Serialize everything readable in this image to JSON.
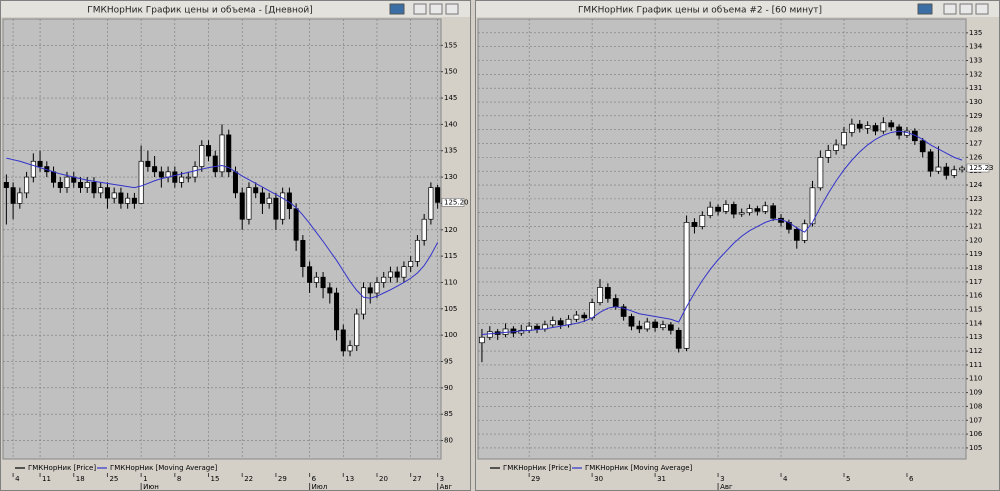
{
  "chart_data": [
    {
      "type": "candlestick",
      "title": "ГМКНорНик График цены и объема - [Дневной]",
      "xlim": [
        -0.5,
        64.5
      ],
      "ylim": [
        76.5,
        160
      ],
      "yticks": [
        155,
        150,
        145,
        140,
        135,
        130,
        125,
        120,
        115,
        110,
        105,
        100,
        95,
        90,
        85,
        80
      ],
      "xticks": [
        {
          "value": 1,
          "label": "4"
        },
        {
          "value": 5,
          "label": "11"
        },
        {
          "value": 10,
          "label": "18"
        },
        {
          "value": 15,
          "label": "25"
        },
        {
          "value": 20,
          "label": "1"
        },
        {
          "value": 25,
          "label": "8"
        },
        {
          "value": 30,
          "label": "15"
        },
        {
          "value": 35,
          "label": "22"
        },
        {
          "value": 40,
          "label": "29"
        },
        {
          "value": 45,
          "label": "6"
        },
        {
          "value": 50,
          "label": "13"
        },
        {
          "value": 55,
          "label": "20"
        },
        {
          "value": 60,
          "label": "27"
        },
        {
          "value": 64,
          "label": "3"
        }
      ],
      "month_labels": [
        {
          "value": 20,
          "label": "Июн"
        },
        {
          "value": 45,
          "label": "Июл"
        },
        {
          "value": 64,
          "label": "Авг"
        }
      ],
      "grid": true,
      "last_price": {
        "value": 125.2,
        "label": "125.20"
      },
      "series": [
        {
          "name": "ГМКНорНик [Price]",
          "color": "#000000",
          "up_color": "#ffffff",
          "values": [
            [
              129,
              130.5,
              121,
              128
            ],
            [
              128,
              129,
              122,
              125
            ],
            [
              125,
              128,
              124,
              127
            ],
            [
              127,
              131,
              126,
              130
            ],
            [
              130,
              134.5,
              129,
              133
            ],
            [
              133,
              135,
              131,
              132
            ],
            [
              132,
              133,
              130,
              131
            ],
            [
              131,
              132,
              128,
              129
            ],
            [
              129,
              130,
              127,
              128
            ],
            [
              128,
              131,
              127,
              130
            ],
            [
              130,
              131,
              128,
              129
            ],
            [
              129,
              130,
              127,
              128
            ],
            [
              128,
              130,
              127,
              129
            ],
            [
              129,
              130,
              126,
              127
            ],
            [
              127,
              129,
              126,
              128
            ],
            [
              128,
              129,
              124,
              126
            ],
            [
              126,
              128,
              125,
              127
            ],
            [
              127,
              128,
              124,
              125
            ],
            [
              125,
              127,
              124,
              126
            ],
            [
              126,
              127,
              124,
              125
            ],
            [
              125,
              136,
              125,
              133
            ],
            [
              133,
              135,
              131,
              132
            ],
            [
              132,
              134,
              130,
              131
            ],
            [
              131,
              132,
              128,
              130
            ],
            [
              130,
              132,
              129,
              131
            ],
            [
              131,
              132,
              128,
              129
            ],
            [
              129,
              131,
              128,
              130
            ],
            [
              130,
              131,
              129,
              130
            ],
            [
              130,
              133,
              129,
              132
            ],
            [
              132,
              137,
              131,
              136
            ],
            [
              136,
              137,
              133,
              134
            ],
            [
              134,
              135,
              130,
              131
            ],
            [
              131,
              140,
              130,
              138
            ],
            [
              138,
              139,
              130,
              131
            ],
            [
              131,
              132,
              126,
              127
            ],
            [
              127,
              128,
              120,
              122
            ],
            [
              122,
              129,
              121,
              128
            ],
            [
              128,
              129,
              126,
              127
            ],
            [
              127,
              128,
              123,
              125
            ],
            [
              125,
              127,
              124,
              126
            ],
            [
              126,
              127,
              120,
              122
            ],
            [
              122,
              128,
              121,
              127
            ],
            [
              127,
              128,
              122,
              124
            ],
            [
              124,
              125,
              116,
              118
            ],
            [
              118,
              119,
              111,
              113
            ],
            [
              113,
              114,
              108,
              110
            ],
            [
              110,
              112,
              109,
              111
            ],
            [
              111,
              112,
              107,
              109
            ],
            [
              109,
              110,
              106,
              108
            ],
            [
              108,
              109,
              99,
              101
            ],
            [
              101,
              102,
              96,
              97
            ],
            [
              97,
              99,
              96,
              98
            ],
            [
              98,
              105,
              97,
              104
            ],
            [
              104,
              110,
              103,
              109
            ],
            [
              109,
              110,
              106,
              108
            ],
            [
              108,
              111,
              107,
              110
            ],
            [
              110,
              112,
              109,
              111
            ],
            [
              111,
              113,
              110,
              112
            ],
            [
              112,
              113,
              110,
              111
            ],
            [
              111,
              114,
              110,
              113
            ],
            [
              113,
              115,
              112,
              114
            ],
            [
              114,
              119,
              113,
              118
            ],
            [
              118,
              123,
              117,
              122
            ],
            [
              122,
              129,
              121,
              128
            ],
            [
              128,
              128.5,
              124,
              125.2
            ]
          ]
        },
        {
          "name": "ГМКНорНик [Moving Average]",
          "color": "#3333cc",
          "values": [
            133.6,
            133.3,
            133,
            132.6,
            132.2,
            131.8,
            131.4,
            131,
            130.6,
            130.3,
            130,
            129.7,
            129.4,
            129.2,
            129,
            128.8,
            128.6,
            128.4,
            128.2,
            128,
            128.3,
            128.8,
            129.3,
            129.7,
            130,
            130.3,
            130.6,
            130.9,
            131.2,
            131.5,
            131.8,
            132,
            132.2,
            131.8,
            131,
            130.2,
            129.5,
            128.8,
            128.1,
            127.4,
            126.7,
            126,
            125.2,
            124.2,
            122.8,
            121.2,
            119.5,
            117.8,
            116,
            114.2,
            112.2,
            110.2,
            108.5,
            107.2,
            107,
            107.4,
            108,
            108.6,
            109.3,
            110,
            110.8,
            111.8,
            113.2,
            115.2,
            117.6
          ]
        }
      ]
    },
    {
      "type": "candlestick",
      "title": "ГМКНорНик График цены и объема #2 - [60 минут]",
      "xlim": [
        -0.5,
        61.5
      ],
      "ylim": [
        104.2,
        136
      ],
      "yticks": [
        135,
        134,
        133,
        132,
        131,
        130,
        129,
        128,
        127,
        126,
        125,
        124,
        123,
        122,
        121,
        120,
        119,
        118,
        117,
        116,
        115,
        114,
        113,
        112,
        111,
        110,
        109,
        108,
        107,
        106,
        105
      ],
      "xticks": [
        {
          "value": 6,
          "label": "29"
        },
        {
          "value": 14,
          "label": "30"
        },
        {
          "value": 22,
          "label": "31"
        },
        {
          "value": 30,
          "label": "3"
        },
        {
          "value": 38,
          "label": "4"
        },
        {
          "value": 46,
          "label": "5"
        },
        {
          "value": 54,
          "label": "6"
        }
      ],
      "month_labels": [
        {
          "value": 30,
          "label": "Авг"
        }
      ],
      "grid": true,
      "last_price": {
        "value": 125.23,
        "label": "125.23"
      },
      "series": [
        {
          "name": "ГМКНорНик [Price]",
          "color": "#000000",
          "up_color": "#ffffff",
          "values": [
            [
              112.6,
              113.6,
              111.2,
              113
            ],
            [
              113,
              113.8,
              112.8,
              113.4
            ],
            [
              113.4,
              113.6,
              112.8,
              113.2
            ],
            [
              113.2,
              114,
              113,
              113.6
            ],
            [
              113.6,
              113.8,
              113,
              113.3
            ],
            [
              113.3,
              113.9,
              113.1,
              113.5
            ],
            [
              113.5,
              114.1,
              113.3,
              113.8
            ],
            [
              113.8,
              114,
              113.3,
              113.6
            ],
            [
              113.6,
              114.2,
              113.4,
              113.9
            ],
            [
              113.9,
              114.5,
              113.7,
              114.2
            ],
            [
              114.2,
              114.4,
              113.6,
              113.9
            ],
            [
              113.9,
              114.6,
              113.7,
              114.3
            ],
            [
              114.3,
              114.9,
              114.1,
              114.6
            ],
            [
              114.6,
              114.8,
              114.1,
              114.4
            ],
            [
              114.4,
              115.8,
              114.2,
              115.5
            ],
            [
              115.5,
              117.2,
              115.3,
              116.6
            ],
            [
              116.6,
              116.9,
              115.5,
              115.8
            ],
            [
              115.8,
              116.1,
              115,
              115.2
            ],
            [
              115.2,
              115.4,
              114.2,
              114.5
            ],
            [
              114.5,
              114.7,
              113.5,
              113.8
            ],
            [
              113.8,
              114.2,
              113.3,
              113.6
            ],
            [
              113.6,
              114.4,
              113.4,
              114.1
            ],
            [
              114.1,
              114.3,
              113.4,
              113.7
            ],
            [
              113.7,
              114.2,
              113.5,
              113.9
            ],
            [
              113.9,
              114.1,
              113.2,
              113.5
            ],
            [
              113.5,
              113.7,
              111.9,
              112.2
            ],
            [
              112.2,
              121.8,
              112,
              121.3
            ],
            [
              121.3,
              121.6,
              120.5,
              121
            ],
            [
              121,
              122.1,
              120.8,
              121.8
            ],
            [
              121.8,
              122.8,
              121.6,
              122.4
            ],
            [
              122.4,
              122.6,
              121.8,
              122.1
            ],
            [
              122.1,
              122.9,
              121.9,
              122.6
            ],
            [
              122.6,
              122.8,
              121.6,
              121.9
            ],
            [
              121.9,
              122.3,
              121.7,
              122
            ],
            [
              122,
              122.6,
              121.8,
              122.3
            ],
            [
              122.3,
              122.5,
              121.8,
              122.1
            ],
            [
              122.1,
              122.8,
              121.9,
              122.5
            ],
            [
              122.5,
              122.7,
              121.4,
              121.6
            ],
            [
              121.6,
              121.9,
              121,
              121.3
            ],
            [
              121.3,
              121.5,
              120.5,
              120.8
            ],
            [
              120.8,
              121,
              119.4,
              120
            ],
            [
              120,
              121.5,
              119.8,
              121.2
            ],
            [
              121.2,
              124.3,
              121,
              123.8
            ],
            [
              123.8,
              126.5,
              123.6,
              126
            ],
            [
              126,
              126.9,
              125.6,
              126.5
            ],
            [
              126.5,
              127.3,
              126.2,
              126.9
            ],
            [
              126.9,
              128.2,
              126.6,
              127.8
            ],
            [
              127.8,
              128.8,
              127.5,
              128.4
            ],
            [
              128.4,
              128.7,
              127.8,
              128.1
            ],
            [
              128.1,
              128.6,
              127.7,
              128.3
            ],
            [
              128.3,
              128.5,
              127.6,
              127.9
            ],
            [
              127.9,
              128.9,
              127.7,
              128.5
            ],
            [
              128.5,
              128.7,
              127.9,
              128.2
            ],
            [
              128.2,
              128.4,
              127.3,
              127.6
            ],
            [
              127.6,
              128.2,
              127.4,
              127.9
            ],
            [
              127.9,
              128.1,
              126.9,
              127.2
            ],
            [
              127.2,
              127.4,
              126,
              126.4
            ],
            [
              126.4,
              126.6,
              124.6,
              125
            ],
            [
              125,
              126.8,
              124.8,
              125.3
            ],
            [
              125.3,
              125.6,
              124.4,
              124.7
            ],
            [
              124.7,
              125.4,
              124.5,
              125.1
            ],
            [
              125.1,
              125.4,
              124.9,
              125.23
            ]
          ]
        },
        {
          "name": "ГМКНорНик [Moving Average]",
          "color": "#3333cc",
          "values": [
            113.2,
            113.25,
            113.3,
            113.35,
            113.4,
            113.45,
            113.5,
            113.55,
            113.6,
            113.7,
            113.8,
            113.9,
            114,
            114.15,
            114.4,
            114.8,
            115.1,
            115.2,
            115.1,
            114.9,
            114.7,
            114.6,
            114.5,
            114.4,
            114.3,
            114.1,
            115.2,
            116.2,
            117.1,
            117.9,
            118.6,
            119.2,
            119.8,
            120.3,
            120.7,
            121,
            121.3,
            121.5,
            121.5,
            121.3,
            120.9,
            120.6,
            121.3,
            122.4,
            123.4,
            124.3,
            125.1,
            125.8,
            126.4,
            126.9,
            127.3,
            127.6,
            127.8,
            127.9,
            127.8,
            127.6,
            127.3,
            126.9,
            126.6,
            126.3,
            126,
            125.8
          ]
        }
      ]
    }
  ]
}
